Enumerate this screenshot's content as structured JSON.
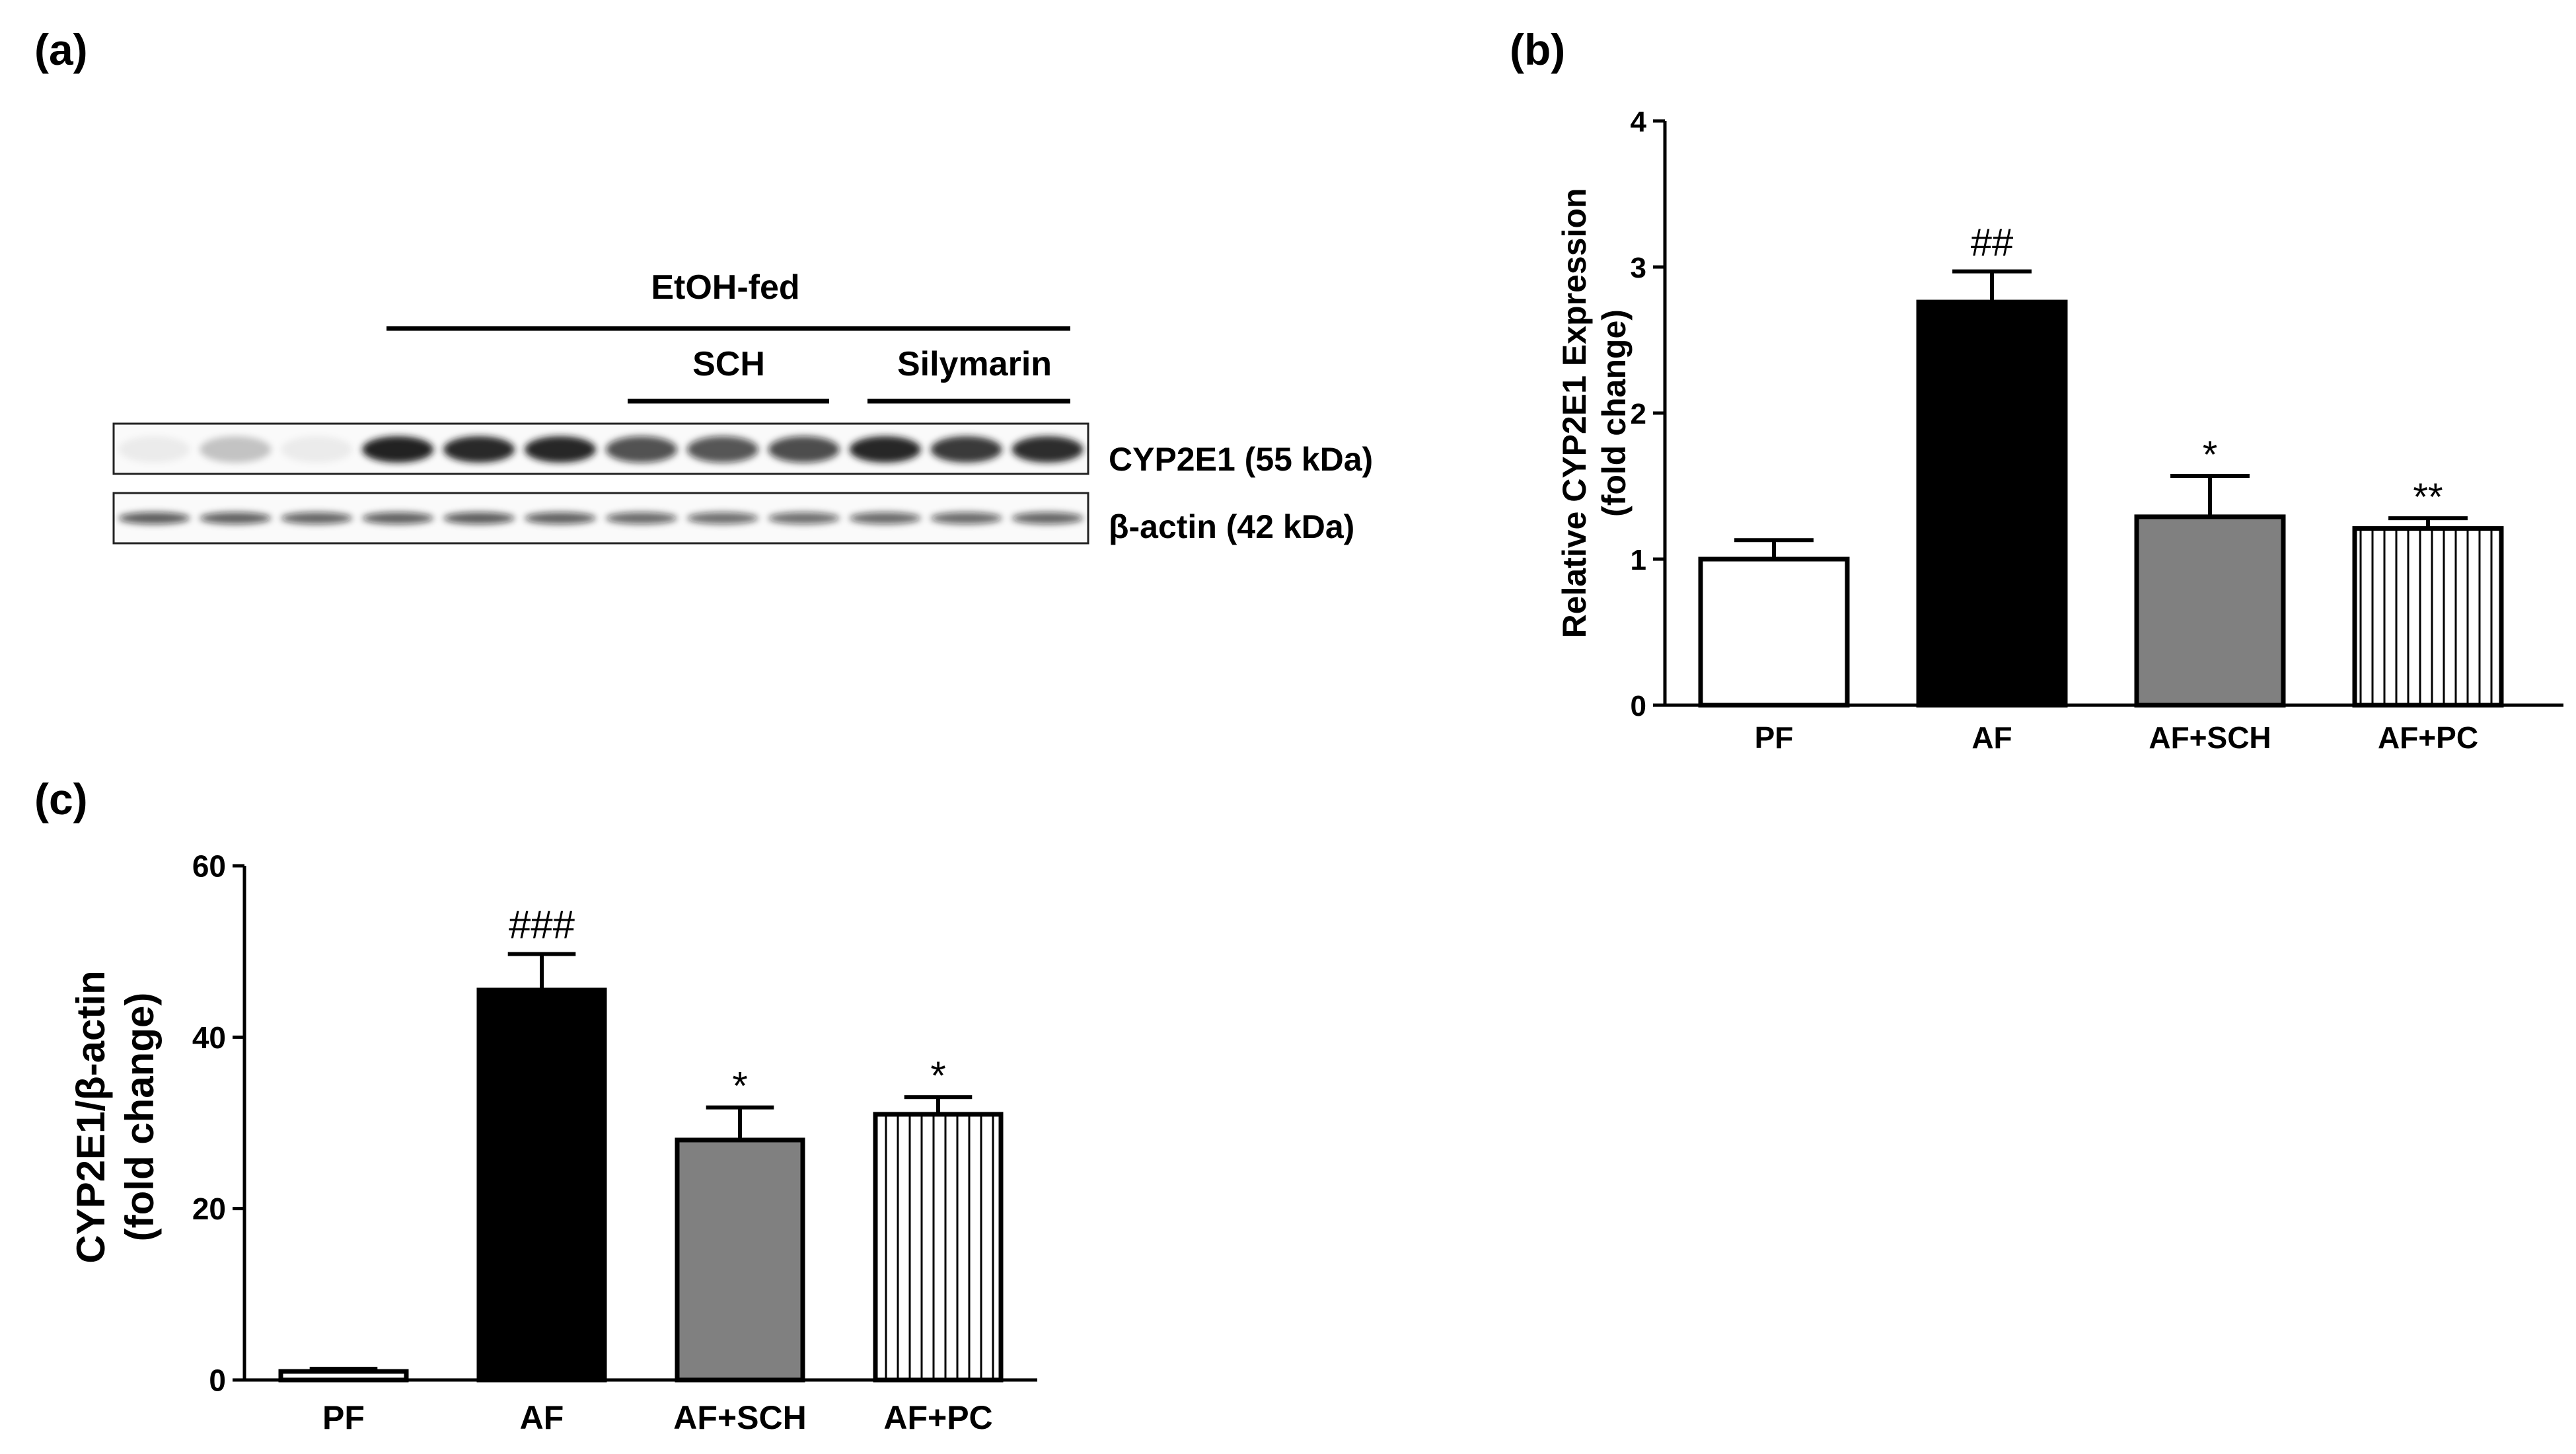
{
  "panels": {
    "a": {
      "label": "(a)"
    },
    "b": {
      "label": "(b)"
    },
    "c": {
      "label": "(c)"
    }
  },
  "western_blot": {
    "group_label": "EtOH-fed",
    "subgroups": [
      "SCH",
      "Silymarin"
    ],
    "bands": [
      {
        "label": "CYP2E1 (55 kDa)",
        "lane_intensity": [
          0.06,
          0.22,
          0.06,
          0.95,
          0.92,
          0.93,
          0.72,
          0.7,
          0.74,
          0.93,
          0.85,
          0.9
        ]
      },
      {
        "label": "β-actin (42 kDa)",
        "lane_intensity": [
          0.68,
          0.66,
          0.64,
          0.66,
          0.68,
          0.66,
          0.62,
          0.6,
          0.6,
          0.62,
          0.62,
          0.64
        ]
      }
    ],
    "colors": {
      "band": "#141414",
      "frame": "#222222"
    }
  },
  "chart_data": [
    {
      "id": "b",
      "type": "bar",
      "categories": [
        "PF",
        "AF",
        "AF+SCH",
        "AF+PC"
      ],
      "values": [
        1.0,
        2.76,
        1.29,
        1.21
      ],
      "errors": [
        0.13,
        0.21,
        0.28,
        0.07
      ],
      "annotations": [
        "",
        "##",
        "*",
        "**"
      ],
      "ylabel": "Relative CYP2E1 Expression\n(fold change)",
      "xlabel": "",
      "ylim": [
        0,
        4
      ],
      "yticks": [
        0,
        1,
        2,
        3,
        4
      ],
      "fills": [
        "white",
        "black",
        "gray",
        "vertical-stripes"
      ],
      "colors": {
        "black": "#000000",
        "gray": "#808080",
        "white": "#ffffff"
      }
    },
    {
      "id": "c",
      "type": "bar",
      "categories": [
        "PF",
        "AF",
        "AF+SCH",
        "AF+PC"
      ],
      "values": [
        1.0,
        45.5,
        28.0,
        31.0
      ],
      "errors": [
        0.3,
        4.2,
        3.8,
        2.0
      ],
      "annotations": [
        "",
        "###",
        "*",
        "*"
      ],
      "ylabel": "CYP2E1/β-actin\n(fold change)",
      "xlabel": "",
      "ylim": [
        0,
        60
      ],
      "yticks": [
        0,
        20,
        40,
        60
      ],
      "fills": [
        "white",
        "black",
        "gray",
        "vertical-stripes"
      ],
      "colors": {
        "black": "#000000",
        "gray": "#808080",
        "white": "#ffffff"
      }
    }
  ]
}
